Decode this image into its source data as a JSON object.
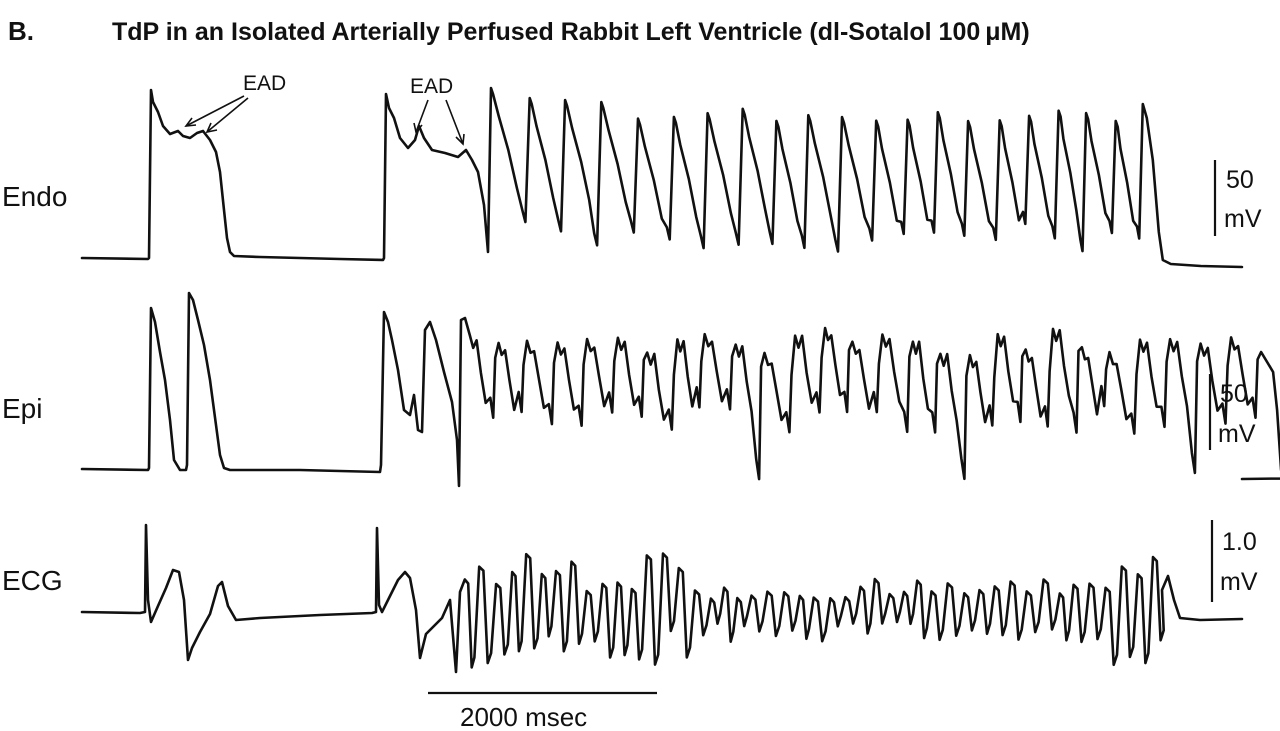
{
  "figure": {
    "panel_letter": "B.",
    "title": "TdP in an Isolated Arterially Perfused Rabbit Left Ventricle (dl-Sotalol 100 μM)"
  },
  "chart_data": {
    "type": "line",
    "traces": [
      {
        "name": "Endo",
        "scale_value": "50",
        "scale_unit": "mV",
        "annotations": [
          {
            "label": "EAD",
            "arrows": 2
          },
          {
            "label": "EAD",
            "arrows": 2
          }
        ]
      },
      {
        "name": "Epi",
        "scale_value": "50",
        "scale_unit": "mV"
      },
      {
        "name": "ECG",
        "scale_value": "1.0",
        "scale_unit": "mV"
      }
    ],
    "time_scale": {
      "label": "2000 msec",
      "duration_ms": 2000
    }
  }
}
